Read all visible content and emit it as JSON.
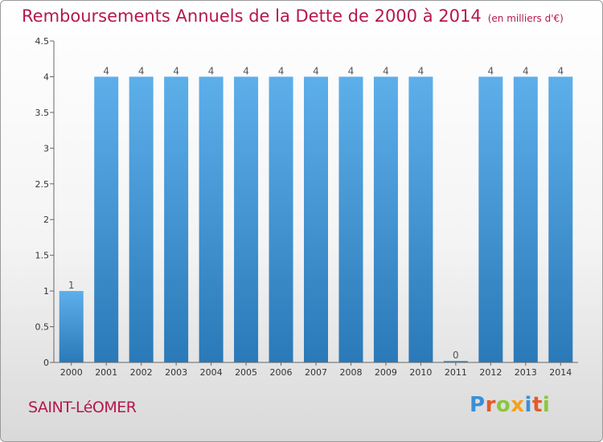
{
  "header": {
    "title": "Remboursements Annuels de la Dette de 2000 à 2014",
    "subtitle": "(en milliers d'€)"
  },
  "footer": {
    "city": "SAINT-LéOMER",
    "brand": "Proxiti",
    "brand_colors": [
      "#3a8fd8",
      "#e25b2a",
      "#8cc63f",
      "#f2a21c",
      "#3a8fd8",
      "#e25b2a",
      "#8cc63f"
    ]
  },
  "chart_data": {
    "type": "bar",
    "title": "Remboursements Annuels de la Dette de 2000 à 2014",
    "unit": "(en milliers d'€)",
    "categories": [
      "2000",
      "2001",
      "2002",
      "2003",
      "2004",
      "2005",
      "2006",
      "2007",
      "2008",
      "2009",
      "2010",
      "2011",
      "2012",
      "2013",
      "2014"
    ],
    "values": [
      1,
      4,
      4,
      4,
      4,
      4,
      4,
      4,
      4,
      4,
      4,
      0,
      4,
      4,
      4
    ],
    "data_labels": [
      "1",
      "4",
      "4",
      "4",
      "4",
      "4",
      "4",
      "4",
      "4",
      "4",
      "4",
      "0",
      "4",
      "4",
      "4"
    ],
    "yticks": [
      "0",
      "0.5",
      "1",
      "1.5",
      "2",
      "2.5",
      "3",
      "3.5",
      "4",
      "4.5"
    ],
    "ylim": [
      0,
      4.5
    ],
    "xlabel": "",
    "ylabel": "",
    "bar_color": "#3d8fd3"
  }
}
